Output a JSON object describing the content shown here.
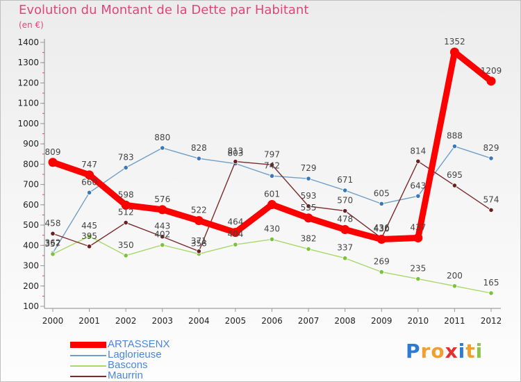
{
  "title": "Evolution du Montant de la Dette par Habitant",
  "subtitle": "(en €)",
  "brand": {
    "letters": [
      "P",
      "r",
      "o",
      "x",
      "i",
      "t",
      "i"
    ],
    "colors": [
      "#2f7bd4",
      "#f0a030",
      "#f0a030",
      "#e03030",
      "#2f7bd4",
      "#f0a030",
      "#8bc34a"
    ]
  },
  "legend": [
    {
      "name": "ARTASSENX",
      "color": "#ff0000"
    },
    {
      "name": "Laglorieuse",
      "color": "#6e9fc8"
    },
    {
      "name": "Bascons",
      "color": "#a6d96a"
    },
    {
      "name": "Maurrin",
      "color": "#7a2a2a"
    }
  ],
  "chart_data": {
    "type": "line",
    "title": "Evolution du Montant de la Dette par Habitant",
    "ylabel": "(en €)",
    "ylim": [
      100,
      1400
    ],
    "yticks": [
      100,
      200,
      300,
      400,
      500,
      600,
      700,
      800,
      900,
      1000,
      1100,
      1200,
      1300,
      1400
    ],
    "x": [
      "2000",
      "2001",
      "2002",
      "2003",
      "2004",
      "2005",
      "2006",
      "2007",
      "2008",
      "2009",
      "2010",
      "2011",
      "2012"
    ],
    "series": [
      {
        "name": "ARTASSENX",
        "color": "#ff0000",
        "marker": "#ff0000",
        "values": [
          809,
          747,
          598,
          576,
          522,
          464,
          601,
          535,
          478,
          430,
          437,
          1352,
          1209
        ]
      },
      {
        "name": "Laglorieuse",
        "color": "#6e9fc8",
        "marker": "#3a78b8",
        "values": [
          362,
          660,
          783,
          880,
          828,
          803,
          742,
          729,
          671,
          605,
          643,
          888,
          829
        ]
      },
      {
        "name": "Bascons",
        "color": "#a6d96a",
        "marker": "#7cc23a",
        "values": [
          357,
          445,
          350,
          402,
          358,
          404,
          430,
          382,
          337,
          269,
          235,
          200,
          165
        ]
      },
      {
        "name": "Maurrin",
        "color": "#7a2a2a",
        "marker": "#6b1f1f",
        "values": [
          458,
          395,
          512,
          443,
          371,
          813,
          797,
          593,
          570,
          436,
          814,
          695,
          574
        ]
      }
    ]
  }
}
